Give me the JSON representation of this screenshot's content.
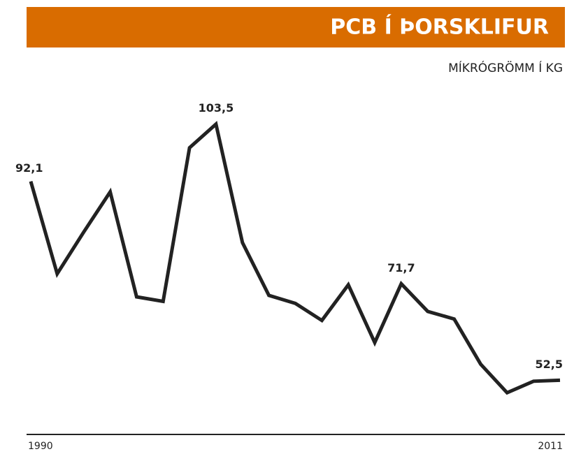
{
  "chart_data": {
    "type": "line",
    "title": "PCB Í ÞORSKLIFUR",
    "subtitle": "MÍKRÓGRÖMM Í KG",
    "categories": [
      "1990",
      null,
      null,
      null,
      null,
      null,
      null,
      null,
      null,
      null,
      null,
      null,
      null,
      null,
      null,
      null,
      null,
      null,
      null,
      null,
      "2011"
    ],
    "values": [
      92.1,
      73.7,
      82.0,
      90.0,
      69.1,
      68.2,
      98.8,
      103.5,
      79.9,
      69.4,
      67.8,
      64.4,
      71.5,
      60.0,
      71.7,
      66.2,
      64.7,
      55.7,
      50.0,
      52.3,
      52.5
    ],
    "value_labels": [
      "92,1",
      null,
      null,
      null,
      null,
      null,
      null,
      "103,5",
      null,
      null,
      null,
      null,
      null,
      null,
      "71,7",
      null,
      null,
      null,
      null,
      null,
      "52,5"
    ],
    "color": "#222222",
    "ylim": [
      41.7,
      110
    ]
  }
}
